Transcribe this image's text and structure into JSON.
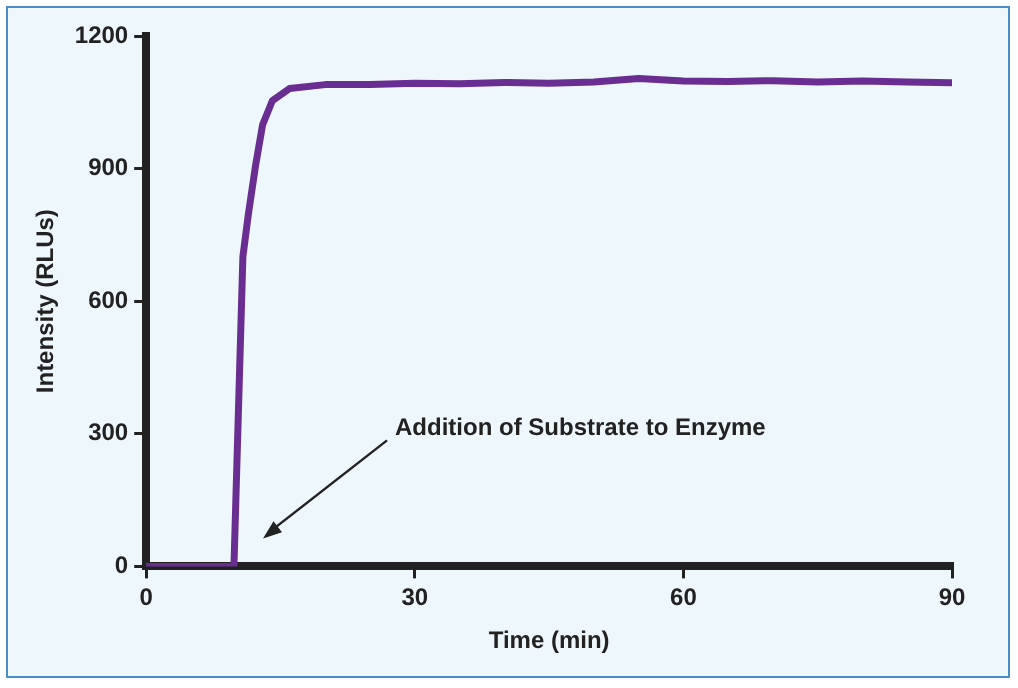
{
  "chart_data": {
    "type": "line",
    "xlabel": "Time (min)",
    "ylabel": "Intensity (RLUs)",
    "xlim": [
      0,
      90
    ],
    "xticks": [
      0,
      30,
      60,
      90
    ],
    "ylim": [
      0,
      1200
    ],
    "yticks": [
      0,
      300,
      600,
      900,
      1200
    ],
    "grid": false,
    "legend": false,
    "marker": "none",
    "line_style": "solid",
    "series": [
      {
        "color": "#6a2d91",
        "x": [
          0,
          9.8,
          10.8,
          11.4,
          12.2,
          13.0,
          14.1,
          16.0,
          20,
          25,
          30,
          35,
          40,
          45,
          50,
          55,
          60,
          65,
          70,
          75,
          80,
          85,
          90
        ],
        "values": [
          0,
          0,
          701,
          795,
          905,
          999,
          1054,
          1081,
          1090,
          1090,
          1093,
          1092,
          1095,
          1093,
          1096,
          1104,
          1098,
          1097,
          1099,
          1096,
          1098,
          1096,
          1094
        ]
      }
    ],
    "annotations": [
      "Addition of Substrate to Enzyme"
    ]
  }
}
